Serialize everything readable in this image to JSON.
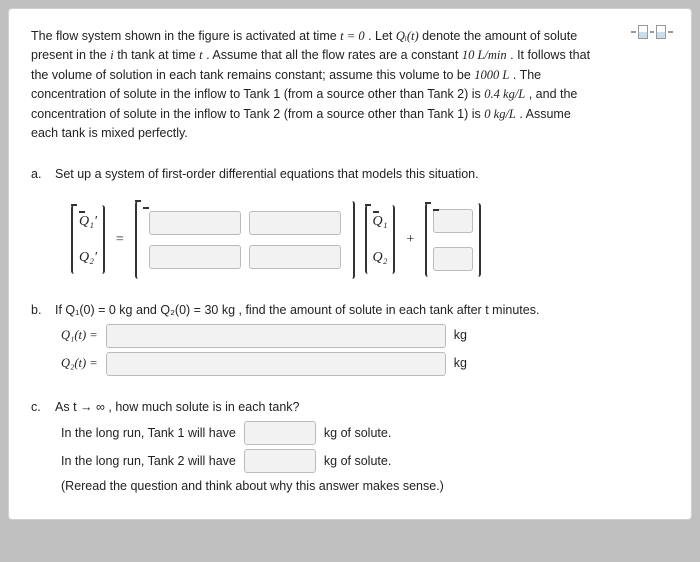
{
  "problem": {
    "text_parts": [
      "The flow system shown in the figure is activated at time ",
      ". Let ",
      " denote the amount of solute present in the ",
      "th tank at time ",
      ". Assume that all the flow rates are a constant ",
      ". It follows that the volume of solution in each tank remains constant; assume this volume to be ",
      ". The concentration of solute in the inflow to Tank 1 (from a source other than Tank 2) is ",
      ", and the concentration of solute in the inflow to Tank 2 (from a source other than Tank 1) is ",
      ". Assume each tank is mixed perfectly."
    ],
    "math": {
      "t0": "t = 0",
      "Qi_t": "Qᵢ(t)",
      "i": "i",
      "t": "t",
      "flowrate": "10 L/min",
      "volume": "1000 L",
      "conc1": "0.4 kg/L",
      "conc2": "0 kg/L"
    }
  },
  "parts": {
    "a": {
      "letter": "a.",
      "prompt": "Set up a system of first-order differential equations that models this situation.",
      "lhs": {
        "r1": "Q₁′",
        "r2": "Q₂′"
      },
      "eq": "=",
      "vec": {
        "r1": "Q₁",
        "r2": "Q₂"
      },
      "plus": "+"
    },
    "b": {
      "letter": "b.",
      "prompt_pre": "If ",
      "ic1": "Q₁(0) = 0 kg",
      "and": " and ",
      "ic2": "Q₂(0) = 30 kg",
      "prompt_post": ", find the amount of solute in each tank after ",
      "t": "t",
      "prompt_end": " minutes.",
      "r1_label": "Q₁(t) =",
      "r2_label": "Q₂(t) =",
      "unit": "kg"
    },
    "c": {
      "letter": "c.",
      "prompt_pre": "As ",
      "lim": "t → ∞",
      "prompt_post": ", how much solute is in each tank?",
      "line1_pre": "In the long run, Tank 1 will have",
      "line1_post": "kg of solute.",
      "line2_pre": "In the long run, Tank 2 will have",
      "line2_post": "kg of solute.",
      "note": "(Reread the question and think about why this answer makes sense.)"
    }
  },
  "styling": {
    "background_page": "#c0c0c0",
    "background_card": "#ffffff",
    "input_bg": "#f2f2f2",
    "input_border": "#bbbbbb",
    "text_color": "#222222",
    "font_body": "Arial",
    "font_math": "Times New Roman",
    "fontsize_body": 12.5,
    "fontsize_math": 14
  }
}
